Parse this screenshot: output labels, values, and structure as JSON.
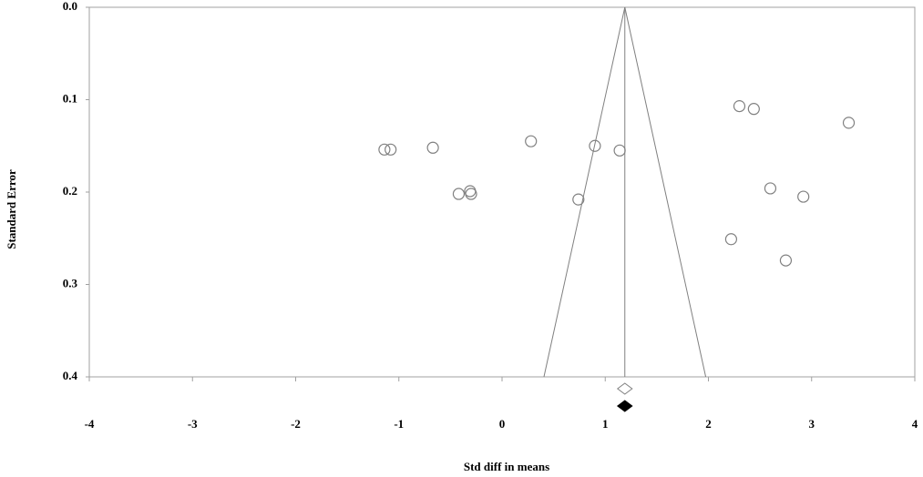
{
  "chart_data": {
    "type": "funnel-scatter",
    "x_label": "Std diff in means",
    "y_label": "Standard Error",
    "xlim": [
      -4,
      4
    ],
    "xticks": [
      -4,
      -3,
      -2,
      -1,
      0,
      1,
      2,
      3,
      4
    ],
    "ylim": [
      0,
      0.4
    ],
    "y_inverted": true,
    "yticks": [
      {
        "value": 0,
        "label": "0.0"
      },
      {
        "value": 0.1,
        "label": "0.1"
      },
      {
        "value": 0.2,
        "label": "0.2"
      },
      {
        "value": 0.3,
        "label": "0.3"
      },
      {
        "value": 0.4,
        "label": "0.4"
      }
    ],
    "summary": {
      "observed": 1.19,
      "adjusted": 1.19
    },
    "funnel_z": 1.96,
    "series": [
      {
        "color": "#808080",
        "x": [
          -1.14,
          -1.08,
          -0.67,
          -0.42,
          -0.31,
          -0.3,
          0.28,
          0.74,
          0.9,
          1.14,
          2.3,
          2.44,
          2.6,
          2.22,
          2.75,
          2.92,
          3.36
        ],
        "values": [
          0.154,
          0.154,
          0.152,
          0.202,
          0.199,
          0.202,
          0.145,
          0.208,
          0.15,
          0.155,
          0.107,
          0.11,
          0.196,
          0.251,
          0.274,
          0.205,
          0.125
        ]
      }
    ]
  }
}
